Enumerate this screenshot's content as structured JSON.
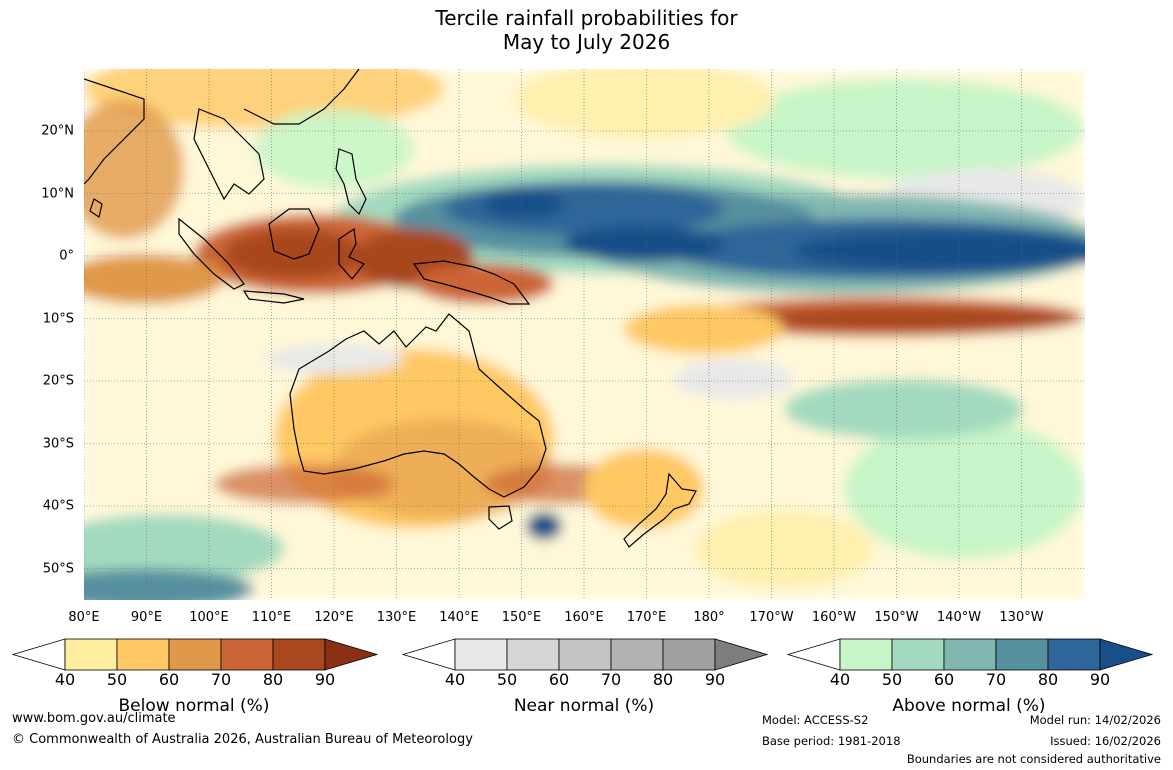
{
  "title": {
    "line1": "Tercile rainfall probabilities for",
    "line2": "May to July 2026"
  },
  "map": {
    "lat_labels": [
      "20°N",
      "10°N",
      "0°",
      "10°S",
      "20°S",
      "30°S",
      "40°S",
      "50°S"
    ],
    "lon_labels": [
      "80°E",
      "90°E",
      "100°E",
      "110°E",
      "120°E",
      "130°E",
      "140°E",
      "150°E",
      "160°E",
      "170°E",
      "180°",
      "170°W",
      "160°W",
      "150°W",
      "140°W",
      "130°W"
    ]
  },
  "legends": [
    {
      "title": "Below normal (%)",
      "ticks": [
        "40",
        "50",
        "60",
        "70",
        "80",
        "90"
      ],
      "colors": [
        "#ffeea0",
        "#fec864",
        "#e0994a",
        "#cc6535",
        "#a9471f",
        "#8a3115"
      ]
    },
    {
      "title": "Near normal (%)",
      "ticks": [
        "40",
        "50",
        "60",
        "70",
        "80",
        "90"
      ],
      "colors": [
        "#e8e8e8",
        "#d6d6d6",
        "#c4c4c4",
        "#b2b2b2",
        "#a0a0a0",
        "#7e7e7e"
      ]
    },
    {
      "title": "Above normal (%)",
      "ticks": [
        "40",
        "50",
        "60",
        "70",
        "80",
        "90"
      ],
      "colors": [
        "#c8f5c8",
        "#a3dabf",
        "#80b7b0",
        "#57909f",
        "#2f6699",
        "#194f88"
      ]
    }
  ],
  "footer": {
    "url": "www.bom.gov.au/climate",
    "copyright": "© Commonwealth of Australia 2026, Australian Bureau of Meteorology",
    "model": "Model: ACCESS-S2",
    "base_period": "Base period: 1981-2018",
    "model_run": "Model run: 14/02/2026",
    "issued": "Issued: 16/02/2026",
    "disclaimer": "Boundaries are not considered authoritative"
  }
}
